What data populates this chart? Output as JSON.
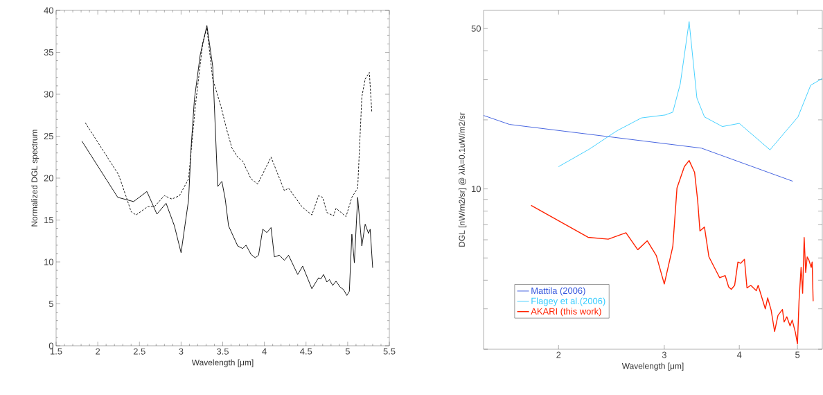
{
  "chart_data": [
    {
      "type": "line",
      "xlabel": "Wavelength [μm]",
      "ylabel": "Normalized DGL spectrum",
      "xlim": [
        1.5,
        5.5
      ],
      "ylim": [
        0,
        40
      ],
      "xticks": [
        1.5,
        2,
        2.5,
        3,
        3.5,
        4,
        4.5,
        5,
        5.5
      ],
      "yticks": [
        0,
        5,
        10,
        15,
        20,
        25,
        30,
        35,
        40
      ],
      "legend": false,
      "series": [
        {
          "color": "#000000",
          "line_style": "solid",
          "x": [
            1.81,
            2.24,
            2.43,
            2.59,
            2.71,
            2.82,
            2.92,
            3.0,
            3.09,
            3.12,
            3.16,
            3.23,
            3.31,
            3.38,
            3.44,
            3.49,
            3.53,
            3.57,
            3.68,
            3.74,
            3.78,
            3.84,
            3.89,
            3.93,
            3.98,
            4.03,
            4.08,
            4.12,
            4.18,
            4.24,
            4.29,
            4.4,
            4.46,
            4.57,
            4.65,
            4.68,
            4.71,
            4.75,
            4.78,
            4.82,
            4.86,
            4.91,
            4.95,
            4.99,
            5.02,
            5.05,
            5.08,
            5.12,
            5.17,
            5.21,
            5.25,
            5.27,
            5.3
          ],
          "values": [
            24.4,
            17.7,
            17.2,
            18.4,
            15.7,
            17.0,
            14.3,
            11.1,
            17.4,
            23.6,
            29.4,
            34.7,
            38.2,
            33.3,
            19.0,
            19.6,
            17.5,
            14.3,
            11.9,
            11.6,
            12.0,
            10.9,
            10.5,
            10.8,
            13.9,
            13.5,
            14.1,
            10.6,
            10.8,
            10.2,
            10.8,
            8.5,
            9.5,
            6.8,
            8.1,
            8.0,
            8.5,
            7.6,
            7.9,
            7.2,
            7.7,
            7.0,
            6.7,
            6.0,
            6.5,
            13.3,
            9.9,
            17.7,
            11.9,
            14.5,
            13.4,
            13.9,
            9.3
          ]
        },
        {
          "color": "#000000",
          "line_style": "dashed",
          "x": [
            1.85,
            2.25,
            2.34,
            2.4,
            2.46,
            2.6,
            2.68,
            2.8,
            2.89,
            2.98,
            3.09,
            3.17,
            3.26,
            3.31,
            3.38,
            3.48,
            3.55,
            3.61,
            3.68,
            3.74,
            3.84,
            3.92,
            4.08,
            4.24,
            4.29,
            4.45,
            4.57,
            4.65,
            4.7,
            4.75,
            4.83,
            4.86,
            4.98,
            5.05,
            5.12,
            5.17,
            5.21,
            5.26,
            5.29
          ],
          "values": [
            26.6,
            20.4,
            17.8,
            16.0,
            15.6,
            16.6,
            16.6,
            17.9,
            17.5,
            17.9,
            19.9,
            28.5,
            36.1,
            37.9,
            31.8,
            28.5,
            25.7,
            23.6,
            22.5,
            22.0,
            19.9,
            19.3,
            22.5,
            18.5,
            18.8,
            16.6,
            15.6,
            17.9,
            17.7,
            15.9,
            15.5,
            16.4,
            15.4,
            17.7,
            18.8,
            29.7,
            31.8,
            32.6,
            27.8
          ]
        }
      ]
    },
    {
      "type": "line",
      "xlabel": "Wavelength [μm]",
      "ylabel": "DGL [nW/m2/sr]   @ λIλ=0.1uW/m2/sr",
      "log": "xy",
      "xlim": [
        1.5,
        5.5
      ],
      "ylim": [
        2,
        60
      ],
      "xticks": [
        2,
        3,
        4,
        5
      ],
      "yticks": [
        {
          "value": 2,
          "label": null
        },
        {
          "value": 3,
          "label": null
        },
        {
          "value": 4,
          "label": null
        },
        {
          "value": 5,
          "label": null
        },
        {
          "value": 6,
          "label": null
        },
        {
          "value": 7,
          "label": null
        },
        {
          "value": 8,
          "label": null
        },
        {
          "value": 9,
          "label": null
        },
        10,
        {
          "value": 20,
          "label": null
        },
        {
          "value": 30,
          "label": null
        },
        {
          "value": 40,
          "label": null
        },
        50
      ],
      "legend": "bottom left",
      "series": [
        {
          "name": "Mattila (2006)",
          "color": "#3355dd",
          "x": [
            1.5,
            1.657,
            3.46,
            4.91
          ],
          "values": [
            20.9,
            19.1,
            15.05,
            10.8
          ]
        },
        {
          "name": "Flagey et al.(2006)",
          "color": "#33ccff",
          "x": [
            2.0,
            2.25,
            2.5,
            2.75,
            3.01,
            3.1,
            3.19,
            3.3,
            3.4,
            3.5,
            3.75,
            4.0,
            4.5,
            5.01,
            5.26,
            5.5
          ],
          "values": [
            12.5,
            14.9,
            17.9,
            20.4,
            21.0,
            21.6,
            28.7,
            53.6,
            24.9,
            20.6,
            18.7,
            19.3,
            14.8,
            20.6,
            28.3,
            30.3
          ]
        },
        {
          "name": "AKARI (this work)",
          "color": "#ff2200",
          "x": [
            1.8,
            2.24,
            2.42,
            2.59,
            2.71,
            2.81,
            2.91,
            3.0,
            3.1,
            3.15,
            3.24,
            3.3,
            3.37,
            3.41,
            3.44,
            3.5,
            3.56,
            3.71,
            3.79,
            3.84,
            3.88,
            3.93,
            3.98,
            4.02,
            4.08,
            4.12,
            4.18,
            4.27,
            4.3,
            4.42,
            4.46,
            4.52,
            4.58,
            4.64,
            4.72,
            4.75,
            4.8,
            4.86,
            4.9,
            4.96,
            5.0,
            5.03,
            5.07,
            5.1,
            5.13,
            5.16,
            5.19,
            5.22,
            5.27,
            5.29,
            5.31
          ],
          "values": [
            8.47,
            6.15,
            6.04,
            6.44,
            5.43,
            5.94,
            5.12,
            3.85,
            5.61,
            10.1,
            12.5,
            13.3,
            11.8,
            8.9,
            6.56,
            6.82,
            5.06,
            4.1,
            4.19,
            3.74,
            3.65,
            3.8,
            4.8,
            4.74,
            4.93,
            3.7,
            3.8,
            3.6,
            3.8,
            3.0,
            3.35,
            2.96,
            2.39,
            2.81,
            2.98,
            2.63,
            2.77,
            2.53,
            2.68,
            2.37,
            2.11,
            3.24,
            4.55,
            3.51,
            6.14,
            4.32,
            5.05,
            4.92,
            4.55,
            4.8,
            3.24
          ]
        }
      ]
    }
  ]
}
